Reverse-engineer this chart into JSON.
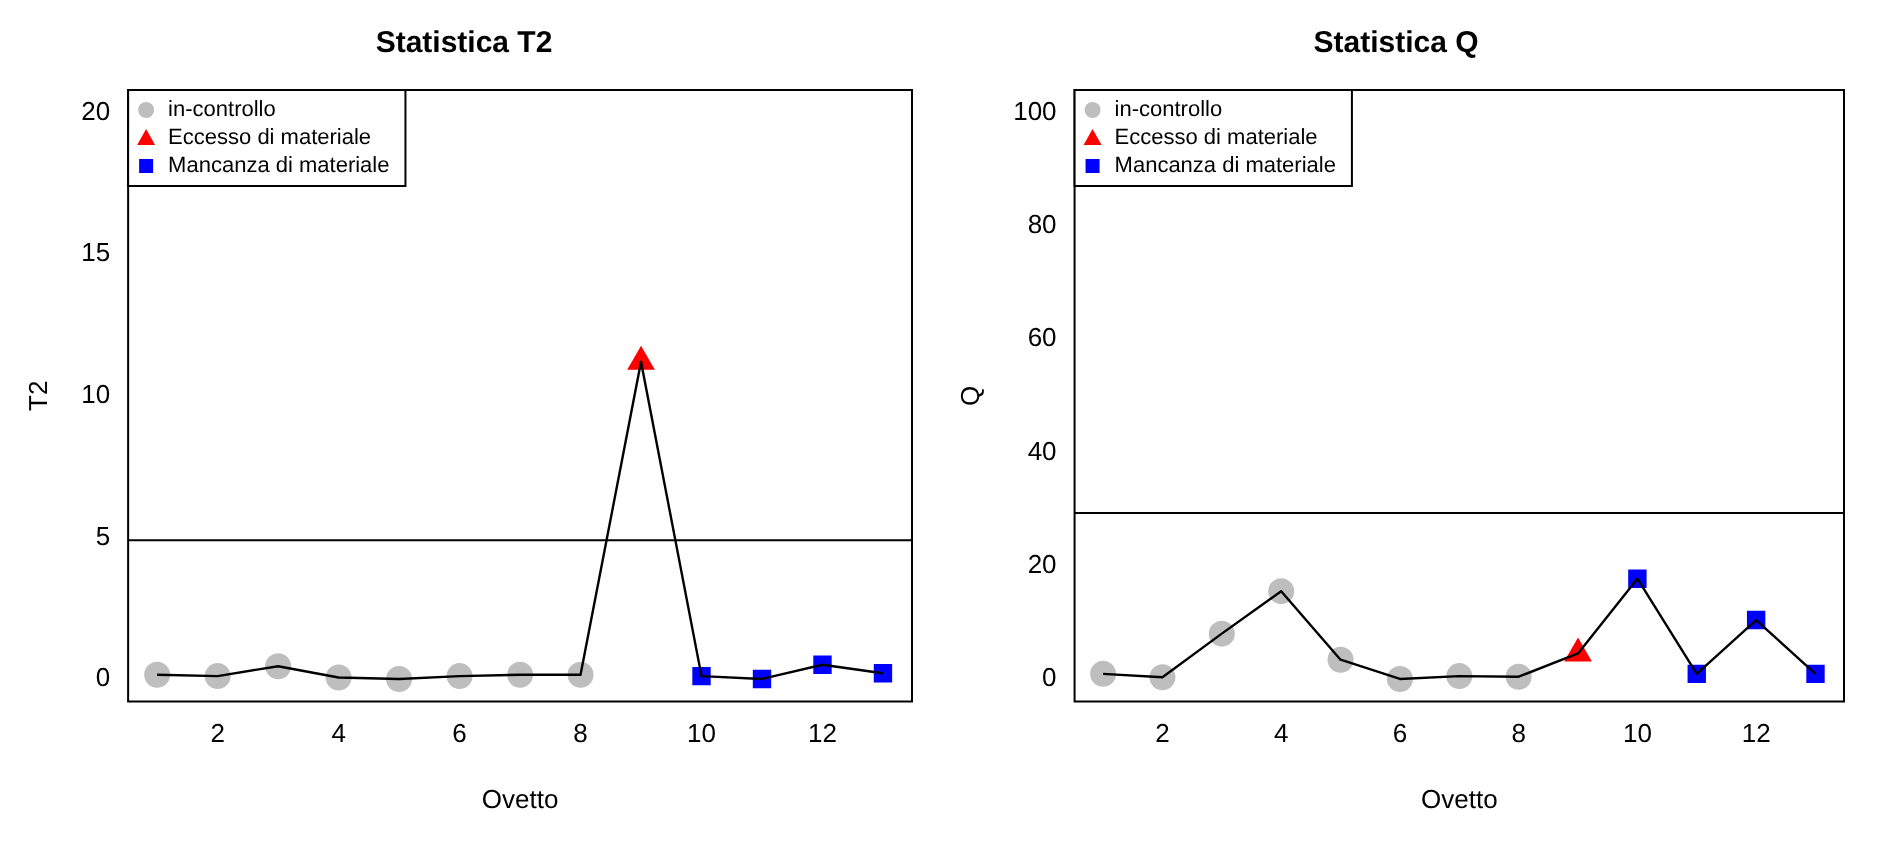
{
  "chart_data": [
    {
      "type": "line",
      "title": "Statistica T2",
      "xlabel": "Ovetto",
      "ylabel": "T2",
      "x": [
        1,
        2,
        3,
        4,
        5,
        6,
        7,
        8,
        9,
        10,
        11,
        12,
        13
      ],
      "xlim": [
        0.52,
        13.48
      ],
      "xticks": [
        2,
        4,
        6,
        8,
        10,
        12
      ],
      "ylim": [
        -0.8,
        20.8
      ],
      "yticks": [
        0,
        5,
        10,
        15,
        20
      ],
      "grid": false,
      "legend": "top left",
      "series": [
        {
          "color": "#000000",
          "marker": "none",
          "values": [
            0.15,
            0.1,
            0.45,
            0.05,
            0,
            0.1,
            0.15,
            0.15,
            11.2,
            0.1,
            0,
            0.5,
            0.2
          ]
        },
        {
          "type": "scatter",
          "name": "in-controllo",
          "color": "#bebebe",
          "marker": "circle",
          "values": [
            0.15,
            0.1,
            0.45,
            0.05,
            0,
            0.1,
            0.15,
            0.15,
            null,
            null,
            null,
            null,
            null
          ]
        },
        {
          "type": "scatter",
          "name": "Eccesso di materiale",
          "color": "#ff0000",
          "marker": "triangle",
          "values": [
            null,
            null,
            null,
            null,
            null,
            null,
            null,
            null,
            11.2,
            null,
            null,
            null,
            null
          ]
        },
        {
          "type": "scatter",
          "name": "Mancanza di materiale",
          "color": "#0000ff",
          "marker": "square",
          "values": [
            null,
            null,
            null,
            null,
            null,
            null,
            null,
            null,
            null,
            0.1,
            0,
            0.5,
            0.2
          ]
        }
      ],
      "ref_lines": [
        {
          "axis": "y",
          "value": 4.9,
          "color": "#000000"
        }
      ]
    },
    {
      "type": "line",
      "title": "Statistica Q",
      "xlabel": "Ovetto",
      "ylabel": "Q",
      "x": [
        1,
        2,
        3,
        4,
        5,
        6,
        7,
        8,
        9,
        10,
        11,
        12,
        13
      ],
      "xlim": [
        0.52,
        13.48
      ],
      "xticks": [
        2,
        4,
        6,
        8,
        10,
        12
      ],
      "ylim": [
        -4,
        104
      ],
      "yticks": [
        0,
        20,
        40,
        60,
        80,
        100
      ],
      "grid": false,
      "legend": "top left",
      "series": [
        {
          "color": "#000000",
          "marker": "none",
          "values": [
            0.9,
            0.3,
            8,
            15.5,
            3.4,
            0,
            0.5,
            0.4,
            4.5,
            17.7,
            0.9,
            10.4,
            0.9
          ]
        },
        {
          "type": "scatter",
          "name": "in-controllo",
          "color": "#bebebe",
          "marker": "circle",
          "values": [
            0.9,
            0.3,
            8,
            15.5,
            3.4,
            0,
            0.5,
            0.4,
            null,
            null,
            null,
            null,
            null
          ]
        },
        {
          "type": "scatter",
          "name": "Eccesso di materiale",
          "color": "#ff0000",
          "marker": "triangle",
          "values": [
            null,
            null,
            null,
            null,
            null,
            null,
            null,
            null,
            4.5,
            null,
            null,
            null,
            null
          ]
        },
        {
          "type": "scatter",
          "name": "Mancanza di materiale",
          "color": "#0000ff",
          "marker": "square",
          "values": [
            null,
            null,
            null,
            null,
            null,
            null,
            null,
            null,
            null,
            17.7,
            0.9,
            10.4,
            0.9
          ]
        }
      ],
      "ref_lines": [
        {
          "axis": "y",
          "value": 29.3,
          "color": "#000000"
        }
      ]
    }
  ]
}
